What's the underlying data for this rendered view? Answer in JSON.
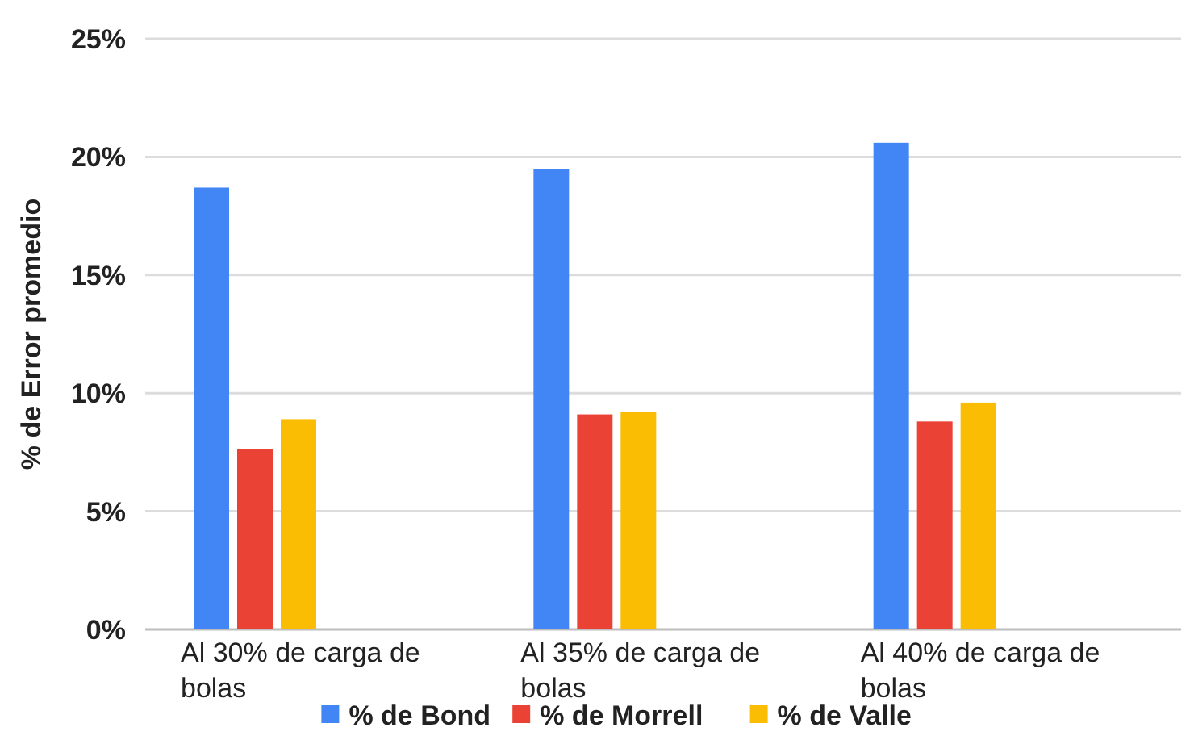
{
  "chart_data": {
    "type": "bar",
    "ylabel": "% de Error promedio",
    "categories": [
      "Al 30% de carga de bolas",
      "Al 35% de carga de bolas",
      "Al 40% de carga de bolas"
    ],
    "series": [
      {
        "name": "% de Bond",
        "color": "#4285f4",
        "values": [
          18.7,
          19.5,
          20.6
        ]
      },
      {
        "name": "% de Morrell",
        "color": "#ea4335",
        "values": [
          7.65,
          9.1,
          8.8
        ]
      },
      {
        "name": "% de Valle",
        "color": "#fbbc04",
        "values": [
          8.9,
          9.2,
          9.6
        ]
      }
    ],
    "ylim": [
      0,
      25
    ],
    "yticks": [
      {
        "value": 0,
        "label": "0%"
      },
      {
        "value": 5,
        "label": "5%"
      },
      {
        "value": 10,
        "label": "10%"
      },
      {
        "value": 15,
        "label": "15%"
      },
      {
        "value": 20,
        "label": "20%"
      },
      {
        "value": 25,
        "label": "25%"
      }
    ],
    "grid": "y",
    "legend": "bottom"
  }
}
